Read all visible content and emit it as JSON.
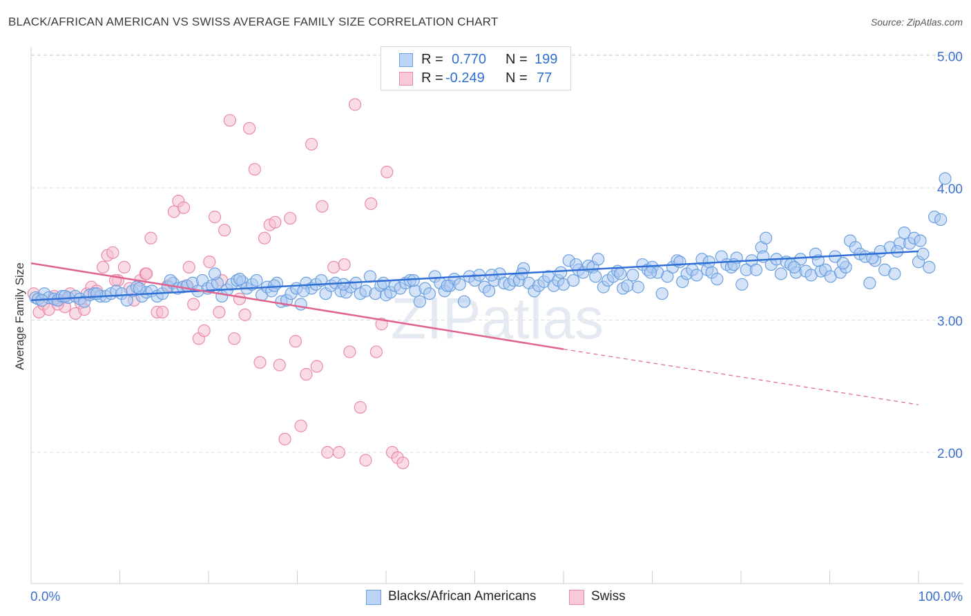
{
  "title": "BLACK/AFRICAN AMERICAN VS SWISS AVERAGE FAMILY SIZE CORRELATION CHART",
  "source": "Source: ZipAtlas.com",
  "watermark": "ZIPatlas",
  "legend_top": [
    {
      "r_label": "R =",
      "r_value": "0.770",
      "n_label": "N =",
      "n_value": "199"
    },
    {
      "r_label": "R =",
      "r_value": "-0.249",
      "n_label": "N =",
      "n_value": "77"
    }
  ],
  "chart_data": {
    "type": "scatter",
    "title": "BLACK/AFRICAN AMERICAN VS SWISS AVERAGE FAMILY SIZE CORRELATION CHART",
    "xlabel": "",
    "ylabel": "Average Family Size",
    "xlim": [
      0,
      100
    ],
    "ylim": [
      1.0,
      5.1
    ],
    "x_tick_labels": [
      "0.0%",
      "100.0%"
    ],
    "y_ticks": [
      2.0,
      3.0,
      4.0,
      5.0
    ],
    "y_tick_labels": [
      "2.00",
      "3.00",
      "4.00",
      "5.00"
    ],
    "grid": "horizontal dashed",
    "legend_position": "bottom",
    "colors": {
      "blue_fill": "#a9c8f0",
      "blue_stroke": "#6a9fe0",
      "blue_line": "#2f6fd6",
      "pink_fill": "#f6bfd0",
      "pink_stroke": "#e98aa8",
      "pink_line": "#e0638f",
      "axis_text": "#3d6fd0"
    },
    "series": [
      {
        "name": "Blacks/African Americans",
        "r": 0.77,
        "n": 199,
        "trend": {
          "x": [
            0,
            100
          ],
          "y": [
            3.15,
            3.52
          ]
        },
        "points": [
          [
            0.5,
            3.17
          ],
          [
            0.8,
            3.16
          ],
          [
            1.5,
            3.2
          ],
          [
            2.0,
            3.17
          ],
          [
            2.6,
            3.16
          ],
          [
            3.0,
            3.15
          ],
          [
            3.5,
            3.18
          ],
          [
            4.2,
            3.17
          ],
          [
            5.0,
            3.18
          ],
          [
            5.5,
            3.16
          ],
          [
            6.0,
            3.14
          ],
          [
            6.6,
            3.19
          ],
          [
            7.1,
            3.2
          ],
          [
            7.8,
            3.18
          ],
          [
            8.4,
            3.18
          ],
          [
            9.0,
            3.2
          ],
          [
            9.6,
            3.22
          ],
          [
            10.2,
            3.2
          ],
          [
            10.8,
            3.15
          ],
          [
            11.4,
            3.22
          ],
          [
            11.9,
            3.25
          ],
          [
            12.5,
            3.18
          ],
          [
            13.0,
            3.21
          ],
          [
            13.6,
            3.22
          ],
          [
            14.2,
            3.18
          ],
          [
            14.8,
            3.2
          ],
          [
            15.4,
            3.25
          ],
          [
            16.0,
            3.28
          ],
          [
            16.5,
            3.24
          ],
          [
            17.1,
            3.25
          ],
          [
            17.6,
            3.26
          ],
          [
            18.2,
            3.28
          ],
          [
            18.8,
            3.22
          ],
          [
            19.3,
            3.3
          ],
          [
            19.9,
            3.24
          ],
          [
            20.4,
            3.26
          ],
          [
            21.0,
            3.28
          ],
          [
            21.5,
            3.18
          ],
          [
            22.1,
            3.23
          ],
          [
            22.6,
            3.27
          ],
          [
            23.2,
            3.3
          ],
          [
            23.8,
            3.29
          ],
          [
            24.3,
            3.24
          ],
          [
            24.9,
            3.27
          ],
          [
            25.4,
            3.3
          ],
          [
            26.0,
            3.19
          ],
          [
            26.6,
            3.25
          ],
          [
            27.1,
            3.22
          ],
          [
            27.7,
            3.28
          ],
          [
            28.2,
            3.14
          ],
          [
            28.8,
            3.15
          ],
          [
            29.3,
            3.2
          ],
          [
            29.9,
            3.24
          ],
          [
            30.4,
            3.12
          ],
          [
            31.0,
            3.28
          ],
          [
            31.6,
            3.24
          ],
          [
            32.1,
            3.27
          ],
          [
            32.7,
            3.3
          ],
          [
            33.2,
            3.2
          ],
          [
            33.8,
            3.26
          ],
          [
            34.3,
            3.28
          ],
          [
            34.9,
            3.22
          ],
          [
            35.5,
            3.21
          ],
          [
            36.0,
            3.25
          ],
          [
            36.6,
            3.28
          ],
          [
            37.1,
            3.2
          ],
          [
            37.7,
            3.22
          ],
          [
            38.2,
            3.33
          ],
          [
            38.8,
            3.2
          ],
          [
            39.4,
            3.26
          ],
          [
            40.0,
            3.19
          ],
          [
            40.5,
            3.21
          ],
          [
            41.0,
            3.26
          ],
          [
            41.6,
            3.24
          ],
          [
            42.2,
            3.28
          ],
          [
            42.7,
            3.3
          ],
          [
            43.3,
            3.22
          ],
          [
            43.8,
            3.14
          ],
          [
            44.4,
            3.24
          ],
          [
            44.9,
            3.2
          ],
          [
            45.5,
            3.33
          ],
          [
            46.1,
            3.28
          ],
          [
            46.6,
            3.22
          ],
          [
            47.2,
            3.26
          ],
          [
            47.7,
            3.31
          ],
          [
            48.3,
            3.27
          ],
          [
            48.8,
            3.14
          ],
          [
            49.4,
            3.33
          ],
          [
            50.0,
            3.3
          ],
          [
            50.5,
            3.34
          ],
          [
            51.1,
            3.25
          ],
          [
            51.6,
            3.22
          ],
          [
            52.2,
            3.3
          ],
          [
            52.8,
            3.35
          ],
          [
            53.3,
            3.28
          ],
          [
            53.9,
            3.27
          ],
          [
            54.4,
            3.3
          ],
          [
            55.0,
            3.3
          ],
          [
            55.5,
            3.39
          ],
          [
            56.1,
            3.28
          ],
          [
            56.7,
            3.22
          ],
          [
            57.2,
            3.26
          ],
          [
            57.8,
            3.29
          ],
          [
            58.3,
            3.33
          ],
          [
            58.9,
            3.26
          ],
          [
            59.4,
            3.3
          ],
          [
            60.0,
            3.27
          ],
          [
            60.6,
            3.45
          ],
          [
            61.1,
            3.3
          ],
          [
            61.7,
            3.38
          ],
          [
            62.2,
            3.36
          ],
          [
            62.8,
            3.41
          ],
          [
            63.3,
            3.4
          ],
          [
            63.9,
            3.46
          ],
          [
            64.5,
            3.25
          ],
          [
            65.0,
            3.3
          ],
          [
            65.6,
            3.33
          ],
          [
            66.1,
            3.37
          ],
          [
            66.7,
            3.24
          ],
          [
            67.2,
            3.26
          ],
          [
            67.8,
            3.34
          ],
          [
            68.4,
            3.25
          ],
          [
            68.9,
            3.42
          ],
          [
            69.5,
            3.38
          ],
          [
            70.0,
            3.4
          ],
          [
            70.6,
            3.36
          ],
          [
            71.1,
            3.2
          ],
          [
            71.7,
            3.33
          ],
          [
            72.3,
            3.4
          ],
          [
            72.8,
            3.45
          ],
          [
            73.4,
            3.29
          ],
          [
            73.9,
            3.35
          ],
          [
            74.5,
            3.38
          ],
          [
            75.0,
            3.34
          ],
          [
            75.6,
            3.46
          ],
          [
            76.2,
            3.38
          ],
          [
            76.7,
            3.36
          ],
          [
            77.3,
            3.31
          ],
          [
            77.8,
            3.48
          ],
          [
            78.4,
            3.42
          ],
          [
            78.9,
            3.4
          ],
          [
            79.5,
            3.47
          ],
          [
            80.1,
            3.27
          ],
          [
            80.6,
            3.38
          ],
          [
            81.2,
            3.45
          ],
          [
            81.7,
            3.38
          ],
          [
            82.3,
            3.55
          ],
          [
            82.8,
            3.62
          ],
          [
            83.4,
            3.42
          ],
          [
            84.0,
            3.46
          ],
          [
            84.5,
            3.35
          ],
          [
            85.1,
            3.44
          ],
          [
            85.6,
            3.42
          ],
          [
            86.2,
            3.36
          ],
          [
            86.7,
            3.46
          ],
          [
            87.3,
            3.37
          ],
          [
            87.9,
            3.34
          ],
          [
            88.4,
            3.5
          ],
          [
            89.0,
            3.37
          ],
          [
            89.5,
            3.38
          ],
          [
            90.1,
            3.33
          ],
          [
            90.6,
            3.48
          ],
          [
            91.2,
            3.36
          ],
          [
            91.8,
            3.4
          ],
          [
            92.3,
            3.6
          ],
          [
            92.9,
            3.55
          ],
          [
            93.4,
            3.5
          ],
          [
            94.0,
            3.48
          ],
          [
            94.5,
            3.28
          ],
          [
            95.1,
            3.45
          ],
          [
            95.7,
            3.52
          ],
          [
            96.2,
            3.38
          ],
          [
            96.8,
            3.55
          ],
          [
            97.3,
            3.35
          ],
          [
            97.9,
            3.58
          ],
          [
            98.4,
            3.66
          ],
          [
            99.0,
            3.58
          ],
          [
            99.5,
            3.62
          ],
          [
            100.0,
            3.44
          ],
          [
            100.5,
            3.5
          ],
          [
            101.2,
            3.4
          ],
          [
            101.8,
            3.78
          ],
          [
            102.5,
            3.76
          ],
          [
            103.0,
            4.07
          ],
          [
            1.2,
            3.15
          ],
          [
            3.8,
            3.18
          ],
          [
            7.4,
            3.2
          ],
          [
            12.2,
            3.24
          ],
          [
            15.7,
            3.3
          ],
          [
            20.7,
            3.35
          ],
          [
            23.5,
            3.31
          ],
          [
            27.4,
            3.26
          ],
          [
            30.7,
            3.22
          ],
          [
            35.2,
            3.27
          ],
          [
            39.7,
            3.28
          ],
          [
            43.1,
            3.3
          ],
          [
            46.9,
            3.26
          ],
          [
            51.9,
            3.34
          ],
          [
            55.3,
            3.35
          ],
          [
            59.7,
            3.36
          ],
          [
            61.4,
            3.42
          ],
          [
            63.6,
            3.33
          ],
          [
            66.4,
            3.35
          ],
          [
            69.8,
            3.36
          ],
          [
            73.1,
            3.44
          ],
          [
            76.4,
            3.44
          ],
          [
            79.2,
            3.42
          ],
          [
            82.5,
            3.48
          ],
          [
            86.0,
            3.4
          ],
          [
            88.7,
            3.45
          ],
          [
            91.5,
            3.43
          ],
          [
            94.8,
            3.47
          ],
          [
            97.6,
            3.52
          ],
          [
            100.2,
            3.6
          ]
        ]
      },
      {
        "name": "Swiss",
        "r": -0.249,
        "n": 77,
        "trend_solid": {
          "x": [
            0,
            60
          ],
          "y": [
            3.43,
            2.78
          ]
        },
        "trend_dashed": {
          "x": [
            60,
            100
          ],
          "y": [
            2.78,
            2.36
          ]
        },
        "points": [
          [
            0.3,
            3.2
          ],
          [
            0.9,
            3.06
          ],
          [
            1.4,
            3.12
          ],
          [
            2.0,
            3.08
          ],
          [
            2.6,
            3.18
          ],
          [
            3.2,
            3.15
          ],
          [
            3.8,
            3.1
          ],
          [
            4.4,
            3.2
          ],
          [
            5.0,
            3.05
          ],
          [
            5.6,
            3.13
          ],
          [
            6.3,
            3.2
          ],
          [
            6.8,
            3.25
          ],
          [
            7.4,
            3.22
          ],
          [
            8.1,
            3.4
          ],
          [
            8.6,
            3.49
          ],
          [
            9.2,
            3.51
          ],
          [
            9.8,
            3.3
          ],
          [
            10.5,
            3.4
          ],
          [
            11.1,
            3.24
          ],
          [
            11.6,
            3.15
          ],
          [
            12.3,
            3.3
          ],
          [
            12.9,
            3.35
          ],
          [
            13.5,
            3.62
          ],
          [
            14.2,
            3.06
          ],
          [
            14.8,
            3.06
          ],
          [
            15.4,
            3.26
          ],
          [
            16.1,
            3.82
          ],
          [
            16.6,
            3.9
          ],
          [
            17.2,
            3.85
          ],
          [
            17.8,
            3.4
          ],
          [
            18.3,
            3.12
          ],
          [
            18.9,
            2.86
          ],
          [
            19.5,
            2.92
          ],
          [
            20.1,
            3.44
          ],
          [
            20.7,
            3.78
          ],
          [
            21.2,
            3.06
          ],
          [
            21.8,
            3.68
          ],
          [
            22.4,
            4.51
          ],
          [
            22.9,
            2.86
          ],
          [
            23.5,
            3.16
          ],
          [
            24.1,
            3.04
          ],
          [
            24.6,
            4.45
          ],
          [
            25.2,
            4.14
          ],
          [
            25.8,
            2.68
          ],
          [
            26.3,
            3.62
          ],
          [
            26.9,
            3.72
          ],
          [
            27.5,
            3.74
          ],
          [
            28.0,
            2.66
          ],
          [
            28.6,
            2.1
          ],
          [
            29.2,
            3.77
          ],
          [
            29.8,
            2.84
          ],
          [
            30.4,
            2.2
          ],
          [
            31.0,
            2.59
          ],
          [
            31.6,
            4.33
          ],
          [
            32.2,
            2.65
          ],
          [
            32.8,
            3.86
          ],
          [
            33.4,
            2.0
          ],
          [
            34.1,
            3.4
          ],
          [
            34.7,
            2.0
          ],
          [
            35.3,
            3.42
          ],
          [
            35.9,
            2.76
          ],
          [
            36.5,
            4.63
          ],
          [
            37.1,
            2.34
          ],
          [
            37.7,
            1.94
          ],
          [
            38.3,
            3.88
          ],
          [
            38.9,
            2.76
          ],
          [
            39.5,
            2.97
          ],
          [
            40.1,
            4.12
          ],
          [
            40.7,
            2.0
          ],
          [
            41.3,
            1.96
          ],
          [
            41.9,
            1.92
          ],
          [
            3.0,
            3.12
          ],
          [
            6.0,
            3.08
          ],
          [
            9.5,
            3.3
          ],
          [
            13.0,
            3.35
          ],
          [
            17.5,
            3.26
          ],
          [
            21.5,
            3.3
          ]
        ]
      }
    ]
  },
  "bottom_legend": [
    {
      "label": "Blacks/African Americans"
    },
    {
      "label": "Swiss"
    }
  ]
}
